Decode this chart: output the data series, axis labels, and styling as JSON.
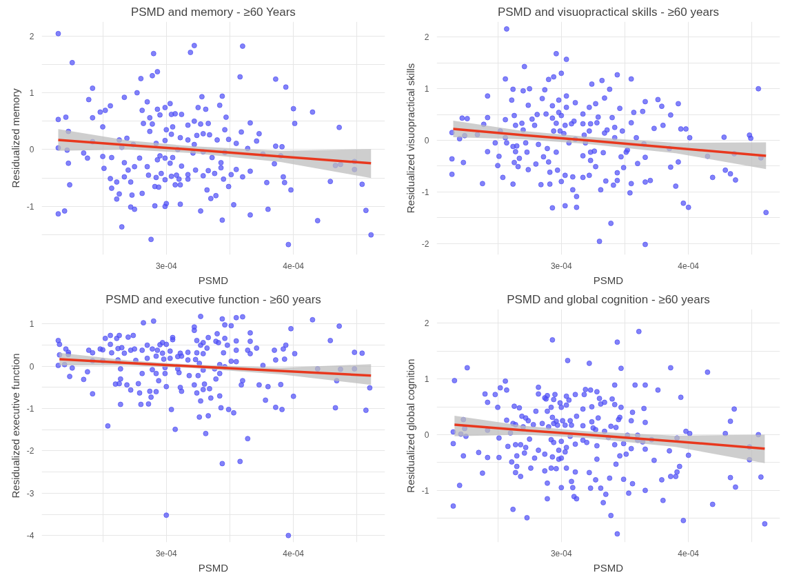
{
  "chart_data": [
    {
      "type": "scatter",
      "title": "PSMD and memory - ≥60 Years",
      "xlabel": "PSMD",
      "ylabel": "Residualized memory",
      "xlim": [
        0.000202,
        0.000472
      ],
      "ylim": [
        -1.85,
        2.25
      ],
      "xticks": [
        {
          "value": 0.00025,
          "label": null
        },
        {
          "value": 0.0003,
          "label": "3e-04"
        },
        {
          "value": 0.00035,
          "label": null
        },
        {
          "value": 0.0004,
          "label": "4e-04"
        },
        {
          "value": 0.00045,
          "label": null
        }
      ],
      "yticks": [
        {
          "value": -1.5,
          "label": null
        },
        -1,
        {
          "value": -0.5,
          "label": null
        },
        0,
        {
          "value": 0.5,
          "label": null
        },
        1,
        {
          "value": 1.5,
          "label": null
        },
        2
      ],
      "grid": true,
      "series": [
        {
          "marker": "circle",
          "color": "#4d4df5",
          "x": [
            0.000215,
            0.000226,
            0.000215,
            0.000221,
            0.000223,
            0.000215,
            0.000222,
            0.000223,
            0.000224,
            0.000215,
            0.00022,
            0.000242,
            0.000239,
            0.000242,
            0.000242,
            0.000235,
            0.000238,
            0.000248,
            0.000252,
            0.000256,
            0.00025,
            0.00025,
            0.000251,
            0.000256,
            0.000257,
            0.000257,
            0.000261,
            0.000261,
            0.000263,
            0.000265,
            0.000267,
            0.000263,
            0.000265,
            0.000267,
            0.00027,
            0.000267,
            0.000272,
            0.000273,
            0.000272,
            0.000275,
            0.000269,
            0.000274,
            0.000277,
            0.00028,
            0.000285,
            0.000281,
            0.000282,
            0.000279,
            0.000275,
            0.000281,
            0.000285,
            0.000286,
            0.000288,
            0.000289,
            0.00029,
            0.000293,
            0.000287,
            0.000289,
            0.000287,
            0.000293,
            0.000295,
            0.000292,
            0.000293,
            0.000295,
            0.000292,
            0.000296,
            0.000291,
            0.000294,
            0.000291,
            0.000299,
            0.0003,
            0.000299,
            0.000299,
            0.000303,
            0.000299,
            0.0003,
            0.000299,
            0.000303,
            0.000304,
            0.000307,
            0.000305,
            0.000304,
            0.000305,
            0.000304,
            0.000309,
            0.000312,
            0.000311,
            0.000312,
            0.000308,
            0.00031,
            0.000307,
            0.000311,
            0.000311,
            0.000317,
            0.000317,
            0.000317,
            0.000317,
            0.000319,
            0.000322,
            0.000322,
            0.000325,
            0.000328,
            0.000327,
            0.000329,
            0.000324,
            0.000322,
            0.000321,
            0.000329,
            0.000323,
            0.000329,
            0.000327,
            0.000331,
            0.000333,
            0.000334,
            0.000333,
            0.000332,
            0.000335,
            0.000339,
            0.000342,
            0.000344,
            0.00034,
            0.000336,
            0.000338,
            0.000343,
            0.000343,
            0.000345,
            0.000344,
            0.000347,
            0.000346,
            0.000349,
            0.000346,
            0.000349,
            0.000351,
            0.000353,
            0.000355,
            0.000355,
            0.000358,
            0.00036,
            0.000359,
            0.00036,
            0.000364,
            0.000366,
            0.000366,
            0.000366,
            0.000373,
            0.000371,
            0.000376,
            0.000379,
            0.00038,
            0.000386,
            0.000394,
            0.000386,
            0.000391,
            0.000385,
            0.00039,
            0.000392,
            0.000393,
            0.000398,
            0.000396,
            0.0004,
            0.000401,
            0.000415,
            0.000419,
            0.000429,
            0.000436,
            0.000433,
            0.000437,
            0.000448,
            0.000448,
            0.000454,
            0.000457,
            0.000461
          ],
          "values": [
            2.04,
            1.53,
            0.53,
            0.57,
            0.32,
            0.03,
            -0.01,
            -0.24,
            -0.62,
            -1.13,
            -1.08,
            1.08,
            0.88,
            0.56,
            0.14,
            -0.06,
            -0.15,
            0.66,
            0.69,
            0.77,
            0.4,
            -0.12,
            -0.33,
            -0.51,
            -0.68,
            -0.14,
            -0.57,
            -0.87,
            -0.78,
            -1.36,
            0.92,
            0.17,
            0.04,
            -0.23,
            -0.36,
            -0.48,
            -0.57,
            -0.8,
            -1.01,
            -1.05,
            0.2,
            0.09,
            1.0,
            1.25,
            0.84,
            0.69,
            0.46,
            -0.15,
            -0.3,
            -0.77,
            -0.3,
            -0.45,
            -1.58,
            1.3,
            1.69,
            1.37,
            0.56,
            0.45,
            0.32,
            0.71,
            0.61,
            0.11,
            -0.18,
            -0.11,
            -0.49,
            -0.42,
            -0.65,
            -0.66,
            -0.99,
            0.74,
            0.35,
            0.16,
            -0.15,
            -0.24,
            -0.53,
            -0.95,
            -1.0,
            0.81,
            0.62,
            0.63,
            0.4,
            0.27,
            -0.14,
            -0.47,
            0.0,
            0.62,
            0.21,
            -0.29,
            -0.45,
            -0.52,
            -0.62,
            -0.62,
            -0.96,
            0.43,
            0.17,
            -0.44,
            -0.52,
            1.71,
            1.83,
            0.5,
            0.74,
            0.93,
            0.45,
            0.28,
            0.25,
            0.09,
            -0.06,
            -0.04,
            -0.36,
            -0.46,
            -1.08,
            0.71,
            0.46,
            0.26,
            -0.37,
            -0.71,
            -0.86,
            -0.81,
            0.78,
            0.94,
            0.17,
            -0.14,
            -0.42,
            -0.23,
            -0.32,
            -0.52,
            -1.24,
            0.57,
            0.35,
            0.18,
            -0.05,
            -0.65,
            -0.44,
            -0.97,
            0.11,
            -0.35,
            1.28,
            1.82,
            0.31,
            -0.48,
            0.02,
            0.47,
            -0.38,
            -1.15,
            0.28,
            0.15,
            -0.08,
            -0.58,
            -1.05,
            1.24,
            1.1,
            0.06,
            0.05,
            -0.25,
            -0.11,
            -0.48,
            -0.58,
            -0.71,
            -1.67,
            0.72,
            0.46,
            0.66,
            -1.25,
            -0.56,
            0.39,
            -0.28,
            -0.26,
            -0.21,
            -0.35,
            -0.61,
            -1.07,
            -1.5
          ]
        },
        {
          "type": "line",
          "color": "#e8381e",
          "x": [
            0.000215,
            0.00027,
            0.00032,
            0.00039,
            0.000461
          ],
          "values": [
            0.17,
            0.08,
            0.0,
            -0.12,
            -0.24
          ],
          "lower": [
            -0.02,
            0.0,
            -0.06,
            -0.22,
            -0.5
          ],
          "upper": [
            0.36,
            0.16,
            0.06,
            -0.02,
            0.01
          ]
        }
      ]
    },
    {
      "type": "scatter",
      "title": "PSMD and visuopractical skills - ≥60 years",
      "xlabel": "PSMD",
      "ylabel": "Residualized visuopractical skills",
      "xlim": [
        0.000202,
        0.000472
      ],
      "ylim": [
        -2.22,
        2.3
      ],
      "xticks": [
        {
          "value": 0.00025,
          "label": null
        },
        {
          "value": 0.0003,
          "label": "3e-04"
        },
        {
          "value": 0.00035,
          "label": null
        },
        {
          "value": 0.0004,
          "label": "4e-04"
        },
        {
          "value": 0.00045,
          "label": null
        }
      ],
      "yticks": [
        -2,
        {
          "value": -1.5,
          "label": null
        },
        -1,
        {
          "value": -0.5,
          "label": null
        },
        0,
        {
          "value": 0.5,
          "label": null
        },
        1,
        {
          "value": 1.5,
          "label": null
        },
        2
      ],
      "grid": true,
      "series": [
        {
          "marker": "circle",
          "color": "#4d4df5",
          "x": [
            0.000214,
            0.000214,
            0.000214,
            0.00022,
            0.000222,
            0.000226,
            0.000224,
            0.000223,
            0.000234,
            0.000238,
            0.000239,
            0.000242,
            0.000242,
            0.000242,
            0.000248,
            0.000251,
            0.00025,
            0.000254,
            0.000252,
            0.000257,
            0.000256,
            0.000256,
            0.000256,
            0.000257,
            0.000261,
            0.000262,
            0.000263,
            0.000264,
            0.000262,
            0.000264,
            0.000263,
            0.000262,
            0.000267,
            0.000266,
            0.000265,
            0.000271,
            0.00027,
            0.000269,
            0.00027,
            0.000272,
            0.000273,
            0.000274,
            0.000274,
            0.000275,
            0.000277,
            0.000279,
            0.000281,
            0.000282,
            0.00028,
            0.000285,
            0.000287,
            0.000286,
            0.000284,
            0.000288,
            0.000289,
            0.00029,
            0.000291,
            0.00029,
            0.000294,
            0.000293,
            0.000293,
            0.000294,
            0.000296,
            0.000293,
            0.000296,
            0.000291,
            0.000296,
            0.000298,
            0.000298,
            0.0003,
            0.0003,
            0.000299,
            0.000302,
            0.000297,
            0.0003,
            0.000303,
            0.000304,
            0.000304,
            0.000304,
            0.000303,
            0.000306,
            0.000303,
            0.000308,
            0.00031,
            0.000311,
            0.000311,
            0.000309,
            0.000309,
            0.000312,
            0.000312,
            0.000317,
            0.000317,
            0.000318,
            0.000319,
            0.000317,
            0.000317,
            0.000322,
            0.000324,
            0.000323,
            0.000322,
            0.000323,
            0.000323,
            0.000322,
            0.000327,
            0.000328,
            0.000329,
            0.000326,
            0.000327,
            0.000331,
            0.00033,
            0.000332,
            0.000334,
            0.000334,
            0.000333,
            0.000335,
            0.000338,
            0.000336,
            0.00034,
            0.000339,
            0.000344,
            0.000342,
            0.000342,
            0.000341,
            0.000344,
            0.000344,
            0.000346,
            0.000347,
            0.000348,
            0.000349,
            0.000351,
            0.000352,
            0.000355,
            0.000355,
            0.000357,
            0.000355,
            0.000354,
            0.000359,
            0.00036,
            0.000364,
            0.000366,
            0.000365,
            0.000366,
            0.000366,
            0.00037,
            0.000366,
            0.000373,
            0.000376,
            0.000379,
            0.00038,
            0.000385,
            0.000386,
            0.000386,
            0.000392,
            0.000394,
            0.000398,
            0.000401,
            0.000392,
            0.00039,
            0.000396,
            0.0004,
            0.000415,
            0.000419,
            0.000428,
            0.000436,
            0.000429,
            0.000433,
            0.000437,
            0.000448,
            0.000449,
            0.000455,
            0.000457,
            0.000461
          ],
          "values": [
            0.15,
            -0.36,
            -0.66,
            0.03,
            0.43,
            0.42,
            0.09,
            -0.43,
            0.11,
            -0.84,
            0.31,
            0.44,
            0.86,
            -0.22,
            -0.05,
            -0.31,
            -0.49,
            -0.72,
            0.18,
            2.16,
            1.19,
            0.4,
            0.05,
            -0.05,
            0.78,
            0.99,
            0.48,
            0.29,
            -0.12,
            -0.22,
            -0.43,
            -0.85,
            -0.35,
            -0.51,
            -0.11,
            1.43,
            0.96,
            0.33,
            0.2,
            -0.05,
            -0.23,
            0.68,
            -0.57,
            1.0,
            0.41,
            0.29,
            0.5,
            -0.08,
            -0.46,
            0.81,
            0.98,
            -0.32,
            -0.86,
            0.51,
            -0.16,
            -0.42,
            -0.62,
            1.18,
            1.23,
            0.67,
            0.43,
            0.18,
            0.33,
            -1.31,
            -0.23,
            -0.85,
            1.68,
            0.78,
            0.54,
            0.48,
            1.3,
            0.18,
            0.13,
            -0.58,
            -0.8,
            -0.68,
            1.57,
            0.86,
            0.64,
            0.29,
            -0.05,
            -1.27,
            0.32,
            0.37,
            0.73,
            0.02,
            -0.71,
            -0.96,
            -1.09,
            -1.3,
            0.51,
            0.32,
            0.1,
            -0.05,
            -0.3,
            -0.72,
            0.64,
            1.09,
            0.32,
            0.18,
            -0.23,
            -0.39,
            -0.68,
            0.71,
            0.34,
            0.45,
            -0.21,
            -0.51,
            -0.96,
            -1.96,
            1.16,
            0.82,
            0.14,
            -0.24,
            -0.79,
            0.99,
            0.2,
            0.44,
            -1.61,
            1.27,
            0.25,
            0.05,
            -0.87,
            -0.63,
            -0.78,
            0.62,
            -0.32,
            0.18,
            -0.53,
            -0.23,
            -0.19,
            1.19,
            0.34,
            0.54,
            -0.84,
            -1.02,
            0.05,
            -0.45,
            0.56,
            0.75,
            -0.07,
            -0.33,
            -0.81,
            -0.78,
            -2.02,
            0.23,
            0.79,
            0.66,
            0.29,
            -0.16,
            0.49,
            -0.52,
            0.71,
            0.22,
            0.22,
            0.05,
            -0.42,
            -0.89,
            -1.22,
            -1.3,
            -0.31,
            -0.72,
            0.06,
            -0.26,
            -0.58,
            -0.65,
            -0.77,
            0.1,
            0.04,
            1.0,
            -0.34,
            -1.4
          ]
        },
        {
          "type": "line",
          "color": "#e8381e",
          "x": [
            0.000215,
            0.00027,
            0.00032,
            0.00039,
            0.000461
          ],
          "values": [
            0.22,
            0.1,
            0.0,
            -0.15,
            -0.3
          ],
          "lower": [
            0.06,
            0.02,
            -0.07,
            -0.25,
            -0.56
          ],
          "upper": [
            0.38,
            0.18,
            0.07,
            -0.05,
            -0.04
          ]
        }
      ]
    },
    {
      "type": "scatter",
      "title": "PSMD and executive function - ≥60 years",
      "xlabel": "PSMD",
      "ylabel": "Residualized executive function",
      "xlim": [
        0.000202,
        0.000472
      ],
      "ylim": [
        -4.16,
        1.35
      ],
      "xticks": [
        {
          "value": 0.00025,
          "label": null
        },
        {
          "value": 0.0003,
          "label": "3e-04"
        },
        {
          "value": 0.00035,
          "label": null
        },
        {
          "value": 0.0004,
          "label": "4e-04"
        },
        {
          "value": 0.00045,
          "label": null
        }
      ],
      "yticks": [
        -4,
        {
          "value": -3.5,
          "label": null
        },
        -3,
        {
          "value": -2.5,
          "label": null
        },
        -2,
        {
          "value": -1.5,
          "label": null
        },
        -1,
        {
          "value": -0.5,
          "label": null
        },
        0,
        {
          "value": 0.5,
          "label": null
        },
        1
      ],
      "grid": true,
      "series": [
        {
          "marker": "circle",
          "color": "#4d4df5",
          "x": [
            0.000215,
            0.000216,
            0.000216,
            0.000215,
            0.000221,
            0.000223,
            0.000223,
            0.00022,
            0.000226,
            0.000224,
            0.000235,
            0.000238,
            0.000239,
            0.000242,
            0.000242,
            0.000242,
            0.000248,
            0.00025,
            0.00025,
            0.000252,
            0.000254,
            0.000256,
            0.000256,
            0.000257,
            0.00026,
            0.000261,
            0.000263,
            0.000262,
            0.000265,
            0.000263,
            0.000264,
            0.000262,
            0.000264,
            0.000264,
            0.000267,
            0.00027,
            0.000274,
            0.000272,
            0.000275,
            0.000269,
            0.000272,
            0.000276,
            0.000278,
            0.000279,
            0.00028,
            0.000282,
            0.000281,
            0.000281,
            0.000285,
            0.000285,
            0.000286,
            0.000287,
            0.000288,
            0.00029,
            0.000289,
            0.000293,
            0.000292,
            0.000289,
            0.000292,
            0.000292,
            0.000294,
            0.000295,
            0.000297,
            0.000298,
            0.000297,
            0.0003,
            0.000299,
            0.000299,
            0.0003,
            0.0003,
            0.000303,
            0.000305,
            0.000305,
            0.000303,
            0.000304,
            0.000307,
            0.000309,
            0.000311,
            0.000312,
            0.00031,
            0.000311,
            0.000312,
            0.000309,
            0.000317,
            0.000317,
            0.000318,
            0.000322,
            0.000322,
            0.000323,
            0.000324,
            0.000324,
            0.000326,
            0.000325,
            0.000322,
            0.000324,
            0.000327,
            0.000327,
            0.000329,
            0.000329,
            0.000329,
            0.000327,
            0.000326,
            0.00033,
            0.000329,
            0.000331,
            0.000333,
            0.000334,
            0.000333,
            0.000332,
            0.000335,
            0.000338,
            0.000339,
            0.00034,
            0.000339,
            0.000341,
            0.000342,
            0.000342,
            0.000343,
            0.000342,
            0.000344,
            0.000345,
            0.000344,
            0.000346,
            0.000346,
            0.000348,
            0.000346,
            0.000349,
            0.000351,
            0.000351,
            0.000353,
            0.000355,
            0.000355,
            0.000355,
            0.000355,
            0.000358,
            0.00036,
            0.000359,
            0.00036,
            0.000364,
            0.000366,
            0.000366,
            0.000366,
            0.000371,
            0.000364,
            0.000376,
            0.000373,
            0.00038,
            0.000378,
            0.000385,
            0.000386,
            0.000386,
            0.000391,
            0.00039,
            0.000392,
            0.000394,
            0.000393,
            0.000398,
            0.000401,
            0.0004,
            0.000396,
            0.000415,
            0.000419,
            0.000429,
            0.000436,
            0.000437,
            0.000434,
            0.000433,
            0.000448,
            0.000448,
            0.000454,
            0.000457,
            0.00046
          ],
          "values": [
            0.61,
            0.52,
            0.27,
            0.02,
            0.41,
            0.33,
            0.28,
            0.04,
            -0.04,
            -0.24,
            -0.31,
            -0.13,
            0.38,
            0.32,
            0.13,
            -0.65,
            0.41,
            0.39,
            0.13,
            0.66,
            -1.41,
            0.73,
            0.52,
            0.32,
            -0.42,
            0.66,
            0.73,
            0.42,
            0.44,
            -0.41,
            -0.9,
            0.15,
            -0.06,
            -0.3,
            0.31,
            0.69,
            0.73,
            0.38,
            0.41,
            -0.44,
            -0.56,
            0.14,
            -0.41,
            -0.63,
            -0.9,
            1.03,
            0.38,
            -0.17,
            0.5,
            0.19,
            -0.89,
            -0.59,
            -0.73,
            1.07,
            0.41,
            0.38,
            0.24,
            -0.08,
            -0.17,
            -0.6,
            -0.34,
            0.51,
            0.31,
            0.17,
            0.56,
            0.52,
            -0.03,
            -0.17,
            -0.48,
            -3.52,
            0.36,
            0.68,
            0.63,
            0.19,
            -1.02,
            -1.49,
            0.23,
            0.31,
            0.24,
            -0.15,
            -0.5,
            -0.59,
            -0.06,
            0.33,
            0.15,
            -0.22,
            0.93,
            0.85,
            0.16,
            0.61,
            0.32,
            0.07,
            -0.22,
            -0.44,
            -0.63,
            1.18,
            0.5,
            0.56,
            0.3,
            -0.09,
            -0.82,
            -1.2,
            -0.42,
            -0.55,
            -1.59,
            0.68,
            -0.53,
            -1.17,
            0.43,
            -0.75,
            -0.06,
            -0.3,
            0.77,
            0.59,
            0.56,
            -0.17,
            -0.7,
            -0.98,
            0.04,
            1.12,
            0.32,
            -2.3,
            0.98,
            0.66,
            0.5,
            -0.01,
            -1.02,
            0.96,
            0.12,
            -1.1,
            1.15,
            0.6,
            0.38,
            0.11,
            -2.25,
            1.17,
            -0.44,
            -0.34,
            0.38,
            0.79,
            0.59,
            0.3,
            0.43,
            -1.71,
            0.02,
            -0.44,
            -0.48,
            -0.8,
            0.38,
            0.15,
            -0.97,
            -1.02,
            -0.43,
            0.41,
            0.5,
            0.17,
            0.89,
            0.3,
            -0.71,
            -4.0,
            1.1,
            -0.06,
            0.61,
            0.95,
            -0.07,
            -0.34,
            -0.98,
            0.33,
            -0.06,
            0.31,
            -1.04,
            -0.51
          ]
        },
        {
          "type": "line",
          "color": "#e8381e",
          "x": [
            0.000216,
            0.00027,
            0.00032,
            0.00039,
            0.000461
          ],
          "values": [
            0.17,
            0.08,
            0.0,
            -0.11,
            -0.22
          ],
          "lower": [
            0.02,
            0.02,
            -0.04,
            -0.19,
            -0.44
          ],
          "upper": [
            0.32,
            0.14,
            0.04,
            -0.03,
            0.05
          ]
        }
      ]
    },
    {
      "type": "scatter",
      "title": "PSMD and global cognition - ≥60 years",
      "xlabel": "PSMD",
      "ylabel": "Residualized global cognition",
      "xlim": [
        0.000202,
        0.000472
      ],
      "ylim": [
        -1.93,
        2.25
      ],
      "xticks": [
        {
          "value": 0.00025,
          "label": null
        },
        {
          "value": 0.0003,
          "label": "3e-04"
        },
        {
          "value": 0.00035,
          "label": null
        },
        {
          "value": 0.0004,
          "label": "4e-04"
        },
        {
          "value": 0.00045,
          "label": null
        }
      ],
      "yticks": [
        {
          "value": -1.5,
          "label": null
        },
        -1,
        {
          "value": -0.5,
          "label": null
        },
        0,
        {
          "value": 0.5,
          "label": null
        },
        1,
        {
          "value": 1.5,
          "label": null
        },
        2
      ],
      "grid": true,
      "series": [
        {
          "marker": "circle",
          "color": "#4d4df5",
          "x": [
            0.000216,
            0.000215,
            0.000215,
            0.000215,
            0.00022,
            0.000221,
            0.000223,
            0.000224,
            0.000225,
            0.000223,
            0.000226,
            0.000235,
            0.000238,
            0.00024,
            0.000242,
            0.000242,
            0.000242,
            0.000248,
            0.00025,
            0.000251,
            0.000251,
            0.000252,
            0.000256,
            0.000257,
            0.000257,
            0.000258,
            0.00026,
            0.000262,
            0.000263,
            0.000264,
            0.000261,
            0.000262,
            0.000264,
            0.000265,
            0.000265,
            0.000264,
            0.000267,
            0.000268,
            0.000268,
            0.000269,
            0.00027,
            0.000271,
            0.000272,
            0.000272,
            0.000273,
            0.000275,
            0.000274,
            0.000276,
            0.000278,
            0.000279,
            0.00028,
            0.000282,
            0.000282,
            0.000282,
            0.000285,
            0.000287,
            0.000288,
            0.000289,
            0.000289,
            0.000287,
            0.000287,
            0.000289,
            0.000289,
            0.00029,
            0.000292,
            0.000292,
            0.000293,
            0.000293,
            0.000294,
            0.000295,
            0.000294,
            0.000293,
            0.000294,
            0.000292,
            0.000296,
            0.000297,
            0.000298,
            0.000298,
            0.000296,
            0.000299,
            0.0003,
            0.000301,
            0.0003,
            0.0003,
            0.0003,
            0.000303,
            0.000304,
            0.000304,
            0.000304,
            0.000306,
            0.000305,
            0.000303,
            0.000304,
            0.000307,
            0.000308,
            0.000307,
            0.000311,
            0.000312,
            0.000311,
            0.000311,
            0.000308,
            0.000309,
            0.00031,
            0.000312,
            0.000317,
            0.000317,
            0.000318,
            0.000319,
            0.000317,
            0.00032,
            0.000322,
            0.000323,
            0.000324,
            0.000324,
            0.000325,
            0.000322,
            0.000323,
            0.000327,
            0.000328,
            0.00033,
            0.000329,
            0.000331,
            0.000327,
            0.000328,
            0.000328,
            0.000331,
            0.000333,
            0.000334,
            0.000334,
            0.000335,
            0.000337,
            0.000338,
            0.000339,
            0.000339,
            0.00034,
            0.000342,
            0.000343,
            0.000342,
            0.000342,
            0.000343,
            0.000344,
            0.000344,
            0.000345,
            0.000346,
            0.000346,
            0.000347,
            0.000347,
            0.000349,
            0.000349,
            0.000351,
            0.000352,
            0.000353,
            0.000355,
            0.000356,
            0.000355,
            0.000356,
            0.000358,
            0.000361,
            0.00036,
            0.00036,
            0.000364,
            0.000365,
            0.000366,
            0.000366,
            0.000366,
            0.000366,
            0.000371,
            0.000373,
            0.000376,
            0.000379,
            0.00038,
            0.000385,
            0.000386,
            0.000386,
            0.00039,
            0.000391,
            0.000391,
            0.000393,
            0.000394,
            0.000396,
            0.000398,
            0.000401,
            0.0004,
            0.000415,
            0.000419,
            0.000429,
            0.000433,
            0.000436,
            0.000433,
            0.000437,
            0.000448,
            0.000448,
            0.000455,
            0.000457,
            0.00046
          ],
          "values": [
            0.97,
            0.05,
            -0.16,
            -1.28,
            -0.91,
            0.01,
            0.27,
            0.11,
            -0.03,
            -0.38,
            1.2,
            -0.32,
            -0.69,
            0.73,
            0.58,
            0.08,
            -0.41,
            0.72,
            0.49,
            -0.06,
            -0.41,
            0.84,
            0.96,
            0.8,
            0.26,
            -0.21,
            0.03,
            0.2,
            0.51,
            0.18,
            -0.49,
            -1.34,
            -0.18,
            -0.38,
            -0.57,
            -0.68,
            0.48,
            -0.75,
            -0.18,
            0.33,
            0.14,
            -0.33,
            0.3,
            -0.23,
            -1.49,
            -0.08,
            0.25,
            -0.6,
            0.18,
            -0.42,
            0.42,
            0.85,
            0.73,
            -0.28,
            0.2,
            0.66,
            0.64,
            0.7,
            0.42,
            -0.65,
            -0.35,
            -0.87,
            -1.15,
            0.14,
            -0.09,
            0.49,
            1.7,
            0.31,
            0.63,
            0.72,
            0.2,
            -0.4,
            -0.14,
            -0.6,
            0.24,
            0.17,
            -0.28,
            -0.44,
            -0.61,
            0.57,
            0.49,
            0.25,
            -0.12,
            -0.42,
            -0.95,
            -0.31,
            -0.23,
            0.69,
            0.53,
            0.62,
            1.33,
            0.17,
            -0.6,
            0.25,
            0.17,
            -0.03,
            0.72,
            0.33,
            -0.17,
            -0.67,
            -0.84,
            -0.95,
            -1.11,
            -1.15,
            0.46,
            0.16,
            0.72,
            0.81,
            -0.1,
            -0.14,
            1.28,
            0.8,
            0.5,
            0.23,
            0.12,
            -0.68,
            -0.96,
            -0.81,
            0.77,
            0.65,
            0.3,
            0.55,
            0.09,
            -0.2,
            -0.44,
            -0.96,
            -1.22,
            0.06,
            0.58,
            -1.07,
            -0.05,
            -0.78,
            0.15,
            -1.45,
            0.64,
            0.89,
            0.13,
            0.54,
            -0.18,
            -0.53,
            1.66,
            -1.78,
            0.27,
            -0.38,
            0.31,
            0.49,
            1.19,
            -0.16,
            -0.8,
            -0.35,
            -0.01,
            -1.05,
            0.25,
            0.4,
            -0.25,
            -0.88,
            0.89,
            1.85,
            -0.01,
            -0.1,
            -0.13,
            0.47,
            0.89,
            0.22,
            -0.26,
            -1.0,
            -0.09,
            -0.46,
            0.8,
            -0.81,
            -1.18,
            -0.29,
            1.2,
            -0.75,
            -0.75,
            -0.67,
            -0.06,
            -0.57,
            0.67,
            -1.54,
            0.06,
            0.02,
            -0.37,
            1.12,
            -1.25,
            0.02,
            0.24,
            0.46,
            -0.77,
            -0.94,
            -0.22,
            -0.45,
            0.0,
            -0.76,
            -1.6
          ]
        },
        {
          "type": "line",
          "color": "#e8381e",
          "x": [
            0.000216,
            0.00027,
            0.00032,
            0.00039,
            0.00046
          ],
          "values": [
            0.18,
            0.08,
            0.0,
            -0.12,
            -0.25
          ],
          "lower": [
            -0.03,
            0.0,
            -0.06,
            -0.22,
            -0.51
          ],
          "upper": [
            0.34,
            0.16,
            0.06,
            -0.02,
            0.0
          ]
        }
      ]
    }
  ]
}
